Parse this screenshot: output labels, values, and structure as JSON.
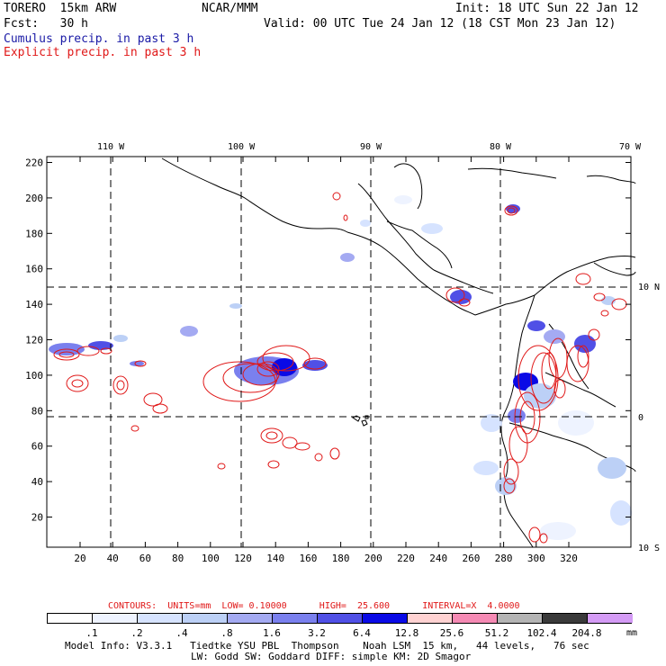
{
  "header": {
    "model": "TORERO  15km ARW",
    "org": "NCAR/MMM",
    "init": "Init: 18 UTC Sun 22 Jan 12",
    "fcst": "Fcst:   30 h",
    "valid": "Valid: 00 UTC Tue 24 Jan 12 (18 CST Mon 23 Jan 12)",
    "legend_cumulus": "Cumulus precip. in past 3 h",
    "legend_explicit": "Explicit precip. in past 3 h"
  },
  "map": {
    "lon_labels": [
      "110 W",
      "100 W",
      "90 W",
      "80 W",
      "70 W"
    ],
    "lat_labels": [
      "10 N",
      "0",
      "10 S"
    ],
    "y_ticks": [
      "220",
      "200",
      "180",
      "160",
      "140",
      "120",
      "100",
      "80",
      "60",
      "40",
      "20"
    ],
    "x_ticks": [
      "20",
      "40",
      "60",
      "80",
      "100",
      "120",
      "140",
      "160",
      "180",
      "200",
      "220",
      "240",
      "260",
      "280",
      "300",
      "320"
    ]
  },
  "contours": {
    "info": "CONTOURS:  UNITS=mm  LOW= 0.10000      HIGH=  25.600      INTERVAL=X  4.0000"
  },
  "colorbar": {
    "labels": [
      ".1",
      ".2",
      ".4",
      ".8",
      "1.6",
      "3.2",
      "6.4",
      "12.8",
      "25.6",
      "51.2",
      "102.4",
      "204.8"
    ],
    "unit": "mm",
    "colors": [
      "#ffffff",
      "#eef3ff",
      "#d6e3ff",
      "#bcd0f6",
      "#a4aaf2",
      "#7a80ee",
      "#5050e6",
      "#0a0ae6",
      "#ffd2d2",
      "#f58ab4",
      "#b4b4b4",
      "#3a3a3a",
      "#d49bf5"
    ]
  },
  "footer": {
    "line1": "Model Info: V3.3.1   Tiedtke YSU PBL  Thompson    Noah LSM  15 km,   44 levels,   76 sec",
    "line2": "LW: Godd SW: Goddard DIFF: simple KM: 2D Smagor"
  }
}
